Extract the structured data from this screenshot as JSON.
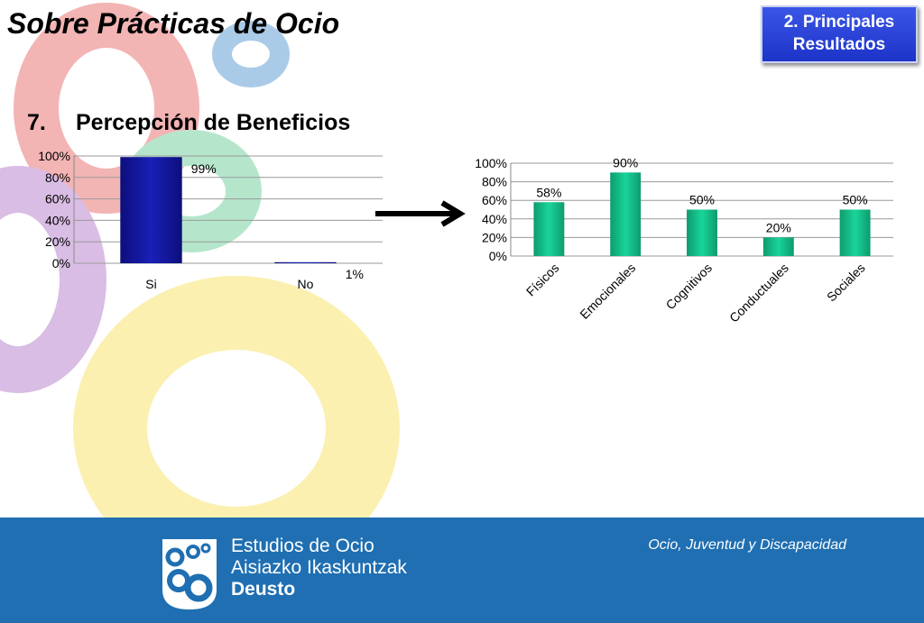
{
  "header": {
    "title": "Sobre Prácticas de Ocio",
    "section_line1": "2. Principales",
    "section_line2": "Resultados"
  },
  "subtitle": {
    "number": "7.",
    "text": "Percepción de Beneficios"
  },
  "colors": {
    "bar_left": "#1a1fb8",
    "bar_right": "#19d49a",
    "footer": "#1f6fb2",
    "deco_red": "#f3b4b4",
    "deco_blue": "#aacbe8",
    "deco_green": "#b5e6cc",
    "deco_purple": "#d9bde4",
    "deco_yellow": "#fbf0b0"
  },
  "chart_data": [
    {
      "type": "bar",
      "categories": [
        "Si",
        "No"
      ],
      "values": [
        99,
        1
      ],
      "data_labels": [
        "99%",
        "1%"
      ],
      "ylim": [
        0,
        100
      ],
      "yticks": [
        "0%",
        "20%",
        "40%",
        "60%",
        "80%",
        "100%"
      ],
      "grid": true
    },
    {
      "type": "bar",
      "categories": [
        "Físicos",
        "Emocionales",
        "Cognitivos",
        "Conductuales",
        "Sociales"
      ],
      "values": [
        58,
        90,
        50,
        20,
        50
      ],
      "data_labels": [
        "58%",
        "90%",
        "50%",
        "20%",
        "50%"
      ],
      "ylim": [
        0,
        100
      ],
      "yticks": [
        "0%",
        "20%",
        "40%",
        "60%",
        "80%",
        "100%"
      ],
      "grid": true
    }
  ],
  "footer": {
    "logo_line1": "Estudios de Ocio",
    "logo_line2": "Aisiazko Ikaskuntzak",
    "logo_line3": "Deusto",
    "caption": "Ocio, Juventud y Discapacidad"
  }
}
